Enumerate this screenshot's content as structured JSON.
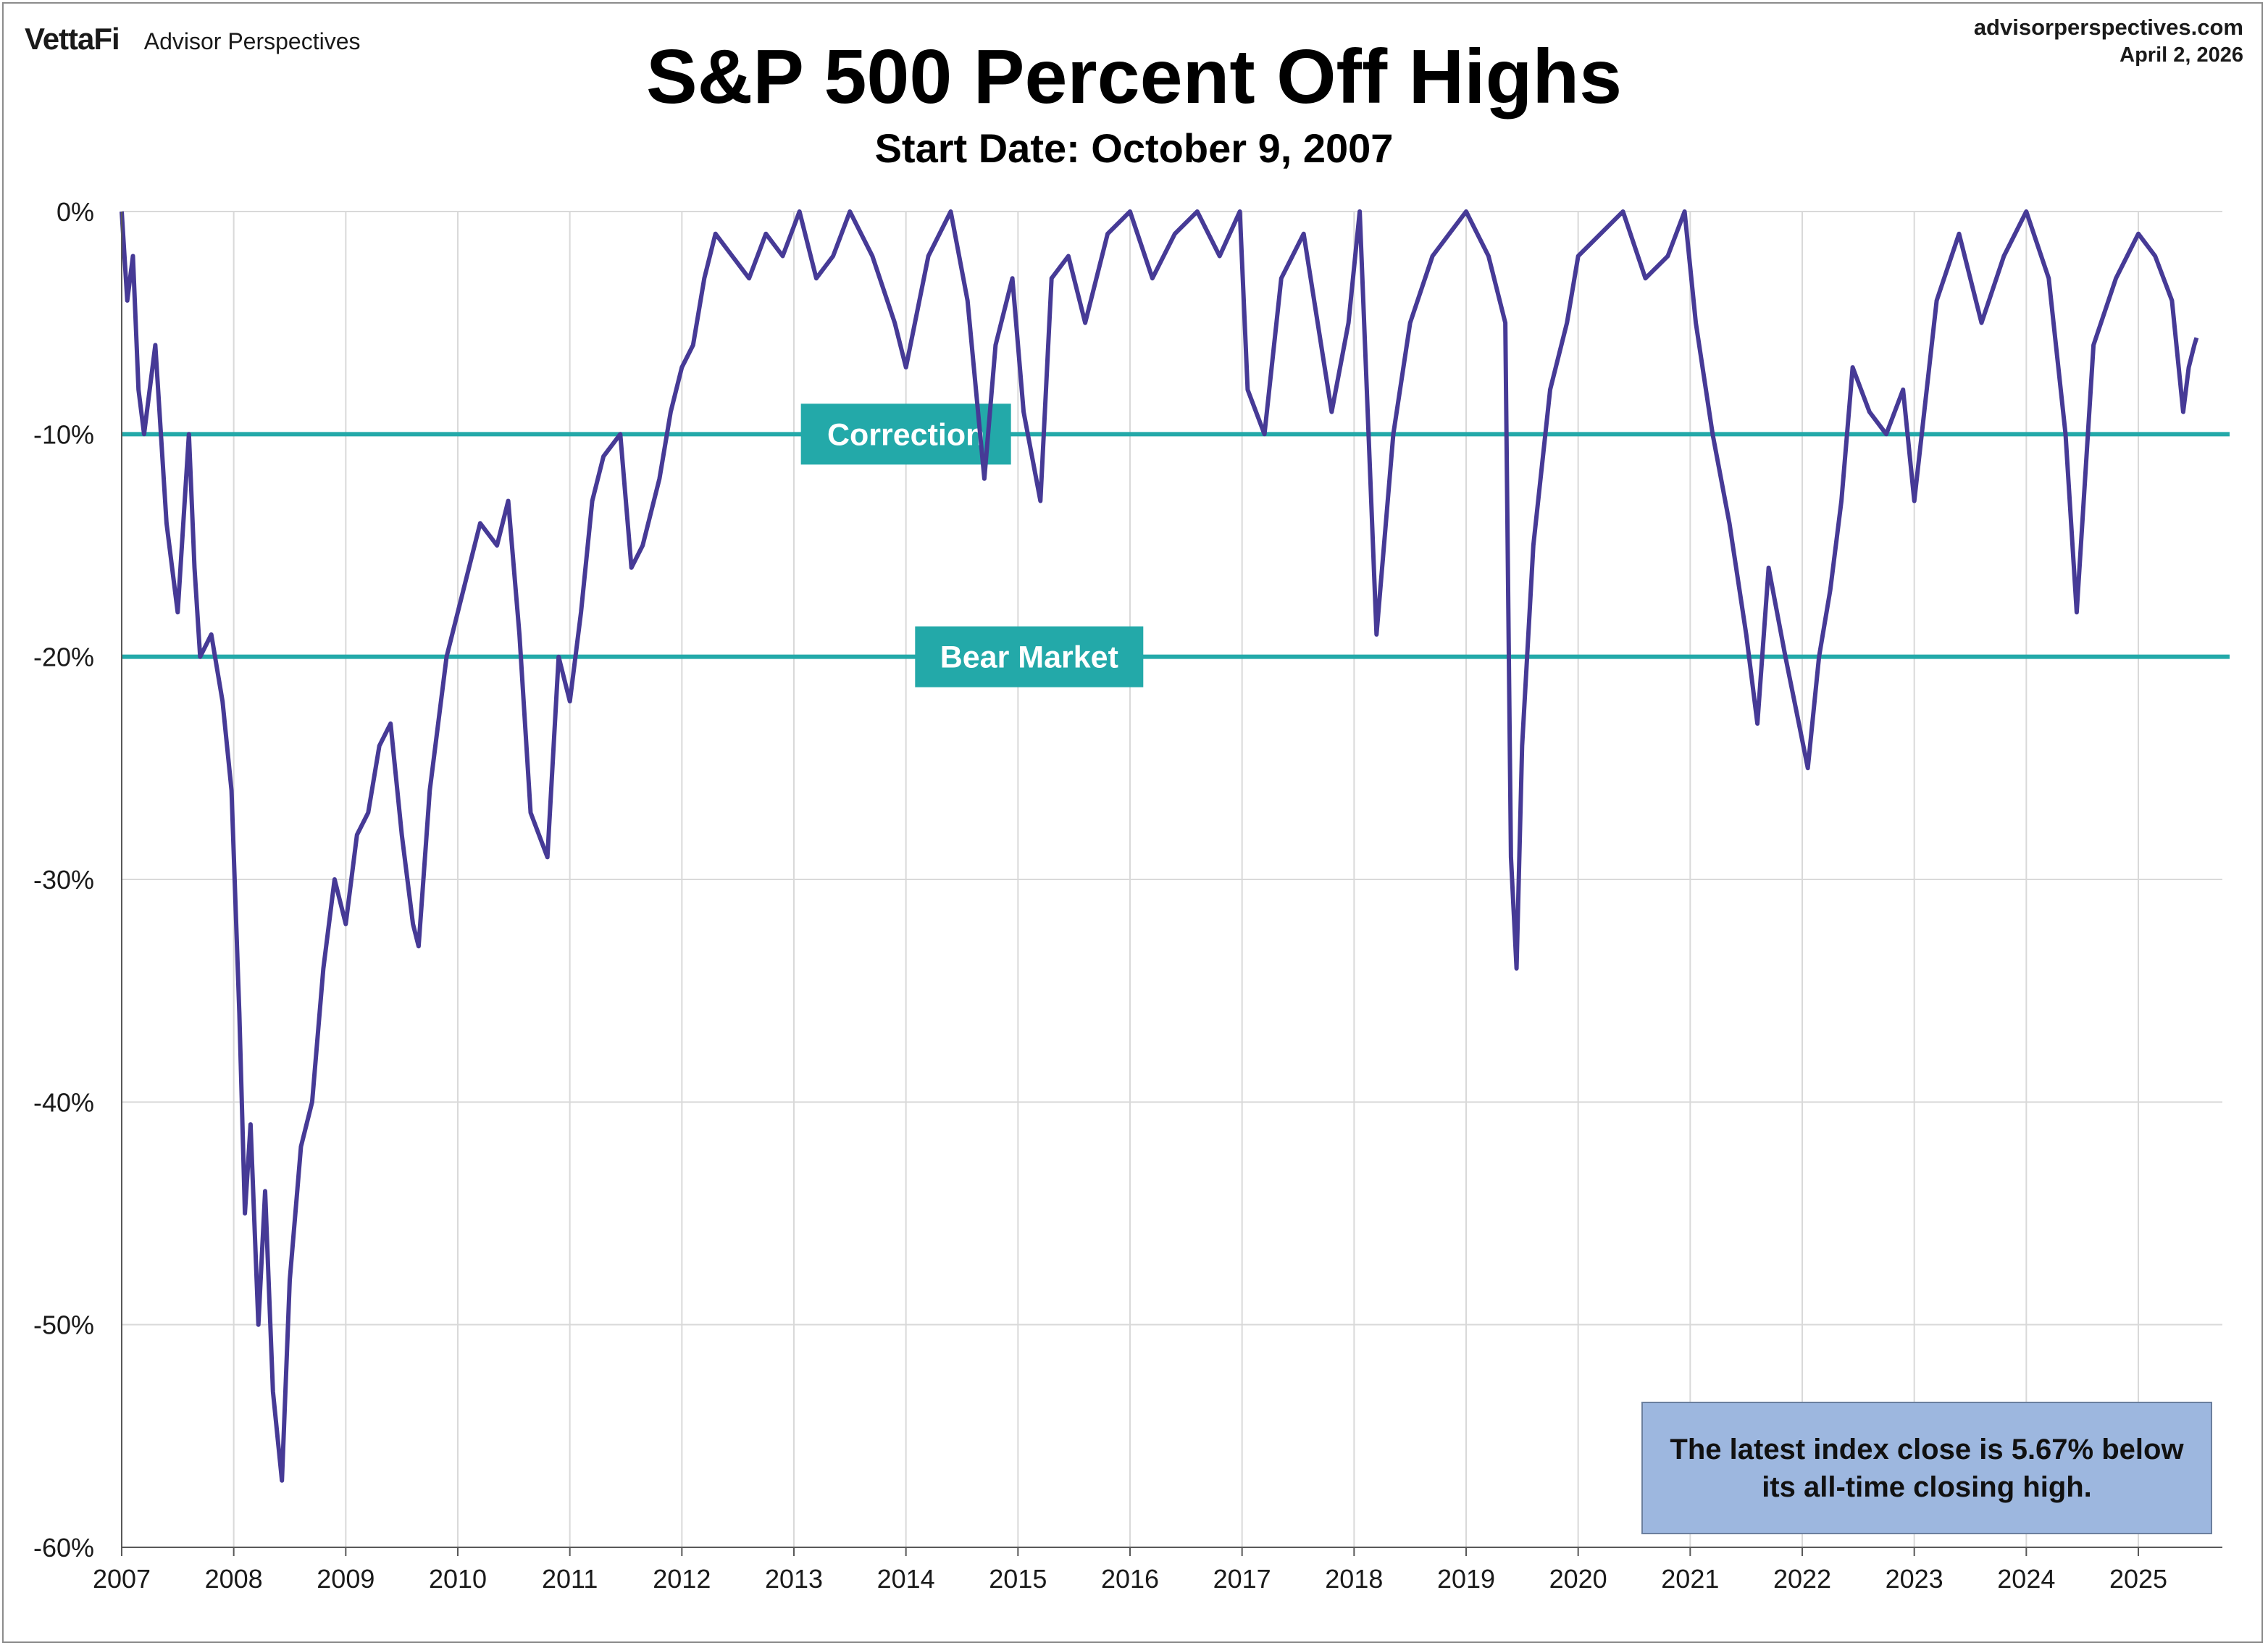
{
  "header": {
    "brand_logo": "VettaFi",
    "brand_sub": "Advisor Perspectives",
    "site_url": "advisorperspectives.com",
    "site_date": "April 2, 2026"
  },
  "chart_data": {
    "type": "line",
    "title": "S&P 500 Percent Off Highs",
    "subtitle": "Start Date: October 9, 2007",
    "xlabel": "",
    "ylabel": "",
    "ylim": [
      -60,
      0
    ],
    "xlim": [
      2007,
      2025.75
    ],
    "grid": true,
    "y_ticks": [
      "0%",
      "-10%",
      "-20%",
      "-30%",
      "-40%",
      "-50%",
      "-60%"
    ],
    "x_ticks": [
      "2007",
      "2008",
      "2009",
      "2010",
      "2011",
      "2012",
      "2013",
      "2014",
      "2015",
      "2016",
      "2017",
      "2018",
      "2019",
      "2020",
      "2021",
      "2022",
      "2023",
      "2024",
      "2025"
    ],
    "reference_lines": [
      {
        "label": "Correction",
        "y": -10,
        "label_x": 2014.0
      },
      {
        "label": "Bear Market",
        "y": -20,
        "label_x": 2015.1
      }
    ],
    "line_color": "#463a96",
    "ref_color": "#23a9a9",
    "series": [
      {
        "x": [
          2007.0,
          2007.05,
          2007.1,
          2007.15,
          2007.2,
          2007.3,
          2007.4,
          2007.5,
          2007.6,
          2007.65,
          2007.7,
          2007.8,
          2007.9,
          2007.98,
          2008.05,
          2008.1,
          2008.15,
          2008.22,
          2008.28,
          2008.35,
          2008.43,
          2008.5,
          2008.6,
          2008.7,
          2008.8,
          2008.9,
          2009.0,
          2009.1,
          2009.2,
          2009.3,
          2009.4,
          2009.5,
          2009.6,
          2009.65,
          2009.75,
          2009.9,
          2010.05,
          2010.2,
          2010.35,
          2010.45,
          2010.55,
          2010.65,
          2010.8,
          2010.9,
          2011.0,
          2011.1,
          2011.2,
          2011.3,
          2011.45,
          2011.55,
          2011.65,
          2011.8,
          2011.9,
          2012.0,
          2012.1,
          2012.2,
          2012.3,
          2012.45,
          2012.6,
          2012.75,
          2012.9,
          2013.05,
          2013.2,
          2013.35,
          2013.5,
          2013.7,
          2013.9,
          2014.0,
          2014.2,
          2014.4,
          2014.55,
          2014.7,
          2014.8,
          2014.95,
          2015.05,
          2015.2,
          2015.3,
          2015.45,
          2015.6,
          2015.8,
          2016.0,
          2016.2,
          2016.4,
          2016.6,
          2016.8,
          2016.98,
          2017.05,
          2017.2,
          2017.35,
          2017.55,
          2017.8,
          2017.95,
          2018.05,
          2018.2,
          2018.35,
          2018.5,
          2018.7,
          2018.85,
          2019.0,
          2019.2,
          2019.35,
          2019.4,
          2019.45,
          2019.5,
          2019.6,
          2019.75,
          2019.9,
          2020.0,
          2020.2,
          2020.4,
          2020.6,
          2020.8,
          2020.95,
          2021.05,
          2021.2,
          2021.35,
          2021.5,
          2021.6,
          2021.7,
          2021.85,
          2021.97,
          2022.05,
          2022.15,
          2022.25,
          2022.35,
          2022.45,
          2022.6,
          2022.75,
          2022.9,
          2023.0,
          2023.2,
          2023.4,
          2023.6,
          2023.8,
          2024.0,
          2024.2,
          2024.35,
          2024.45,
          2024.6,
          2024.8,
          2025.0,
          2025.15,
          2025.3,
          2025.4,
          2025.45,
          2025.5,
          2025.52
        ],
        "values": [
          0,
          -4,
          -2,
          -8,
          -10,
          -6,
          -14,
          -18,
          -10,
          -16,
          -20,
          -19,
          -22,
          -26,
          -36,
          -45,
          -41,
          -50,
          -44,
          -53,
          -57,
          -48,
          -42,
          -40,
          -34,
          -30,
          -32,
          -28,
          -27,
          -24,
          -23,
          -28,
          -32,
          -33,
          -26,
          -20,
          -17,
          -14,
          -15,
          -13,
          -19,
          -27,
          -29,
          -20,
          -22,
          -18,
          -13,
          -11,
          -10,
          -16,
          -15,
          -12,
          -9,
          -7,
          -6,
          -3,
          -1,
          -2,
          -3,
          -1,
          -2,
          0,
          -3,
          -2,
          0,
          -2,
          -5,
          -7,
          -2,
          0,
          -4,
          -12,
          -6,
          -3,
          -9,
          -13,
          -3,
          -2,
          -5,
          -1,
          0,
          -3,
          -1,
          0,
          -2,
          0,
          -8,
          -10,
          -3,
          -1,
          -9,
          -5,
          0,
          -19,
          -10,
          -5,
          -2,
          -1,
          0,
          -2,
          -5,
          -29,
          -34,
          -24,
          -15,
          -8,
          -5,
          -2,
          -1,
          0,
          -3,
          -2,
          0,
          -5,
          -10,
          -14,
          -19,
          -23,
          -16,
          -20,
          -23,
          -25,
          -20,
          -17,
          -13,
          -7,
          -9,
          -10,
          -8,
          -13,
          -4,
          -1,
          -5,
          -2,
          0,
          -3,
          -10,
          -18,
          -6,
          -3,
          -1,
          -2,
          -4,
          -9,
          -7,
          -6,
          -5.67
        ]
      }
    ],
    "annotation": "The latest index close is 5.67% below its all-time closing high."
  }
}
